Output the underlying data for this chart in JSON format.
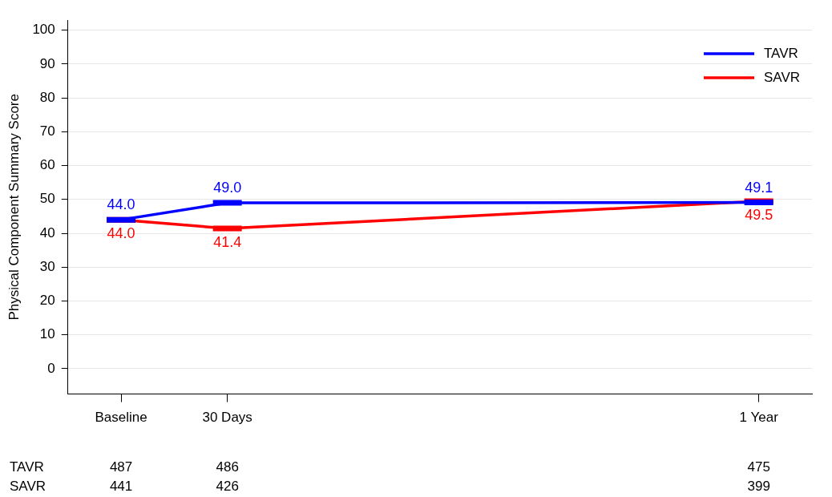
{
  "chart_data": {
    "type": "line",
    "ylabel": "Physical Component Summary Score",
    "categories": [
      "Baseline",
      "30 Days",
      null,
      null,
      null,
      null,
      "1 Year"
    ],
    "ylim": [
      -7.5,
      103
    ],
    "yticks": [
      0,
      10,
      20,
      30,
      40,
      50,
      60,
      70,
      80,
      90,
      100
    ],
    "grid": "y",
    "legend": "top right",
    "series": [
      {
        "name": "TAVR",
        "color": "#0000ff",
        "values": [
          44.0,
          49.0,
          null,
          null,
          null,
          null,
          49.1
        ],
        "value_labels": [
          "44.0",
          "49.0",
          null,
          null,
          null,
          null,
          "49.1"
        ]
      },
      {
        "name": "SAVR",
        "color": "#ff0000",
        "values": [
          44.0,
          41.4,
          null,
          null,
          null,
          null,
          49.5
        ],
        "value_labels": [
          "44.0",
          "41.4",
          null,
          null,
          null,
          null,
          "49.5"
        ]
      }
    ],
    "annotations": [
      "TAVR",
      "487",
      "486",
      "475",
      "SAVR",
      "441",
      "426",
      "399"
    ]
  }
}
